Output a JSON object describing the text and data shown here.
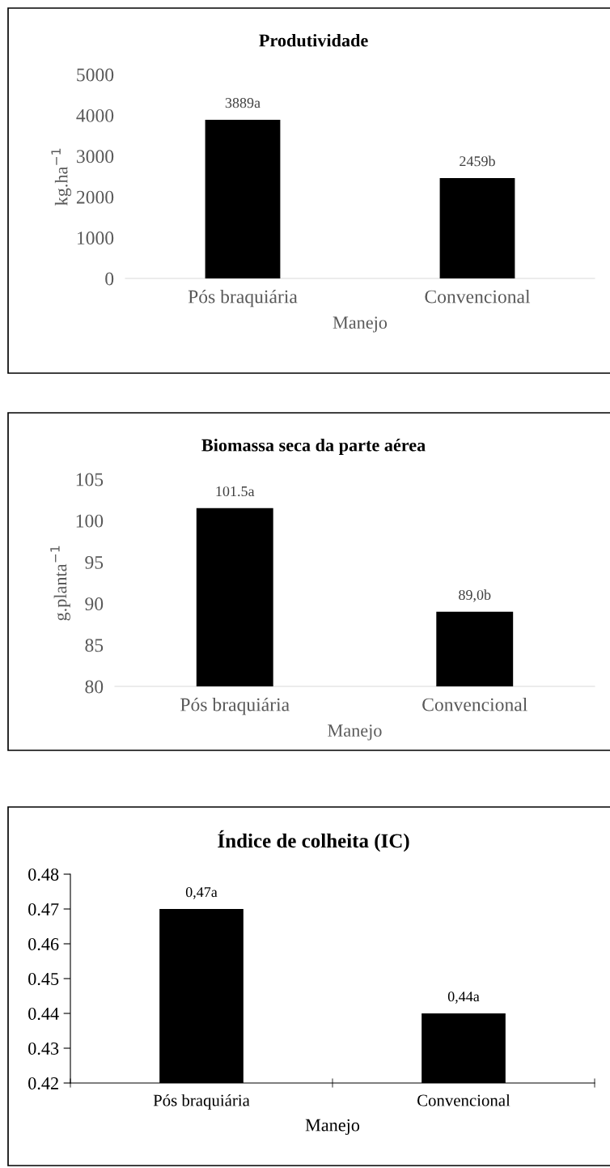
{
  "chart_data": [
    {
      "type": "bar",
      "title": "Produtividade",
      "xlabel": "Manejo",
      "ylabel": "kg.ha$^{−1}$",
      "categories": [
        "Pós braquiária",
        "Convencional"
      ],
      "values": [
        3889,
        2459
      ],
      "value_labels": [
        "3889a",
        "2459b"
      ],
      "color": "#000000",
      "ylim": [
        0,
        5000
      ],
      "yticks": [
        0,
        1000,
        2000,
        3000,
        4000,
        5000
      ],
      "grid": false,
      "legend": false
    },
    {
      "type": "bar",
      "title": "Biomassa seca da parte aérea",
      "xlabel": "Manejo",
      "ylabel": "g.planta$^{−1}$",
      "categories": [
        "Pós braquiária",
        "Convencional"
      ],
      "values": [
        101.5,
        89.0
      ],
      "value_labels": [
        "101.5a",
        "89,0b"
      ],
      "color": "#000000",
      "ylim": [
        80,
        105
      ],
      "yticks": [
        80,
        85,
        90,
        95,
        100,
        105
      ],
      "grid": false,
      "legend": false
    },
    {
      "type": "bar",
      "title": "Índice de colheita (IC)",
      "xlabel": "Manejo",
      "categories": [
        "Pós braquiária",
        "Convencional"
      ],
      "values": [
        0.47,
        0.44
      ],
      "value_labels": [
        "0,47a",
        "0,44a"
      ],
      "color": "#000000",
      "ylim": [
        0.42,
        0.48
      ],
      "yticks": [
        {
          "value": 0.42,
          "label": "0.42"
        },
        {
          "value": 0.43,
          "label": "0.43"
        },
        {
          "value": 0.44,
          "label": "0.44"
        },
        {
          "value": 0.45,
          "label": "0.45"
        },
        {
          "value": 0.46,
          "label": "0.46"
        },
        {
          "value": 0.47,
          "label": "0.47"
        },
        {
          "value": 0.48,
          "label": "0.48"
        }
      ],
      "grid": false,
      "legend": false
    }
  ]
}
